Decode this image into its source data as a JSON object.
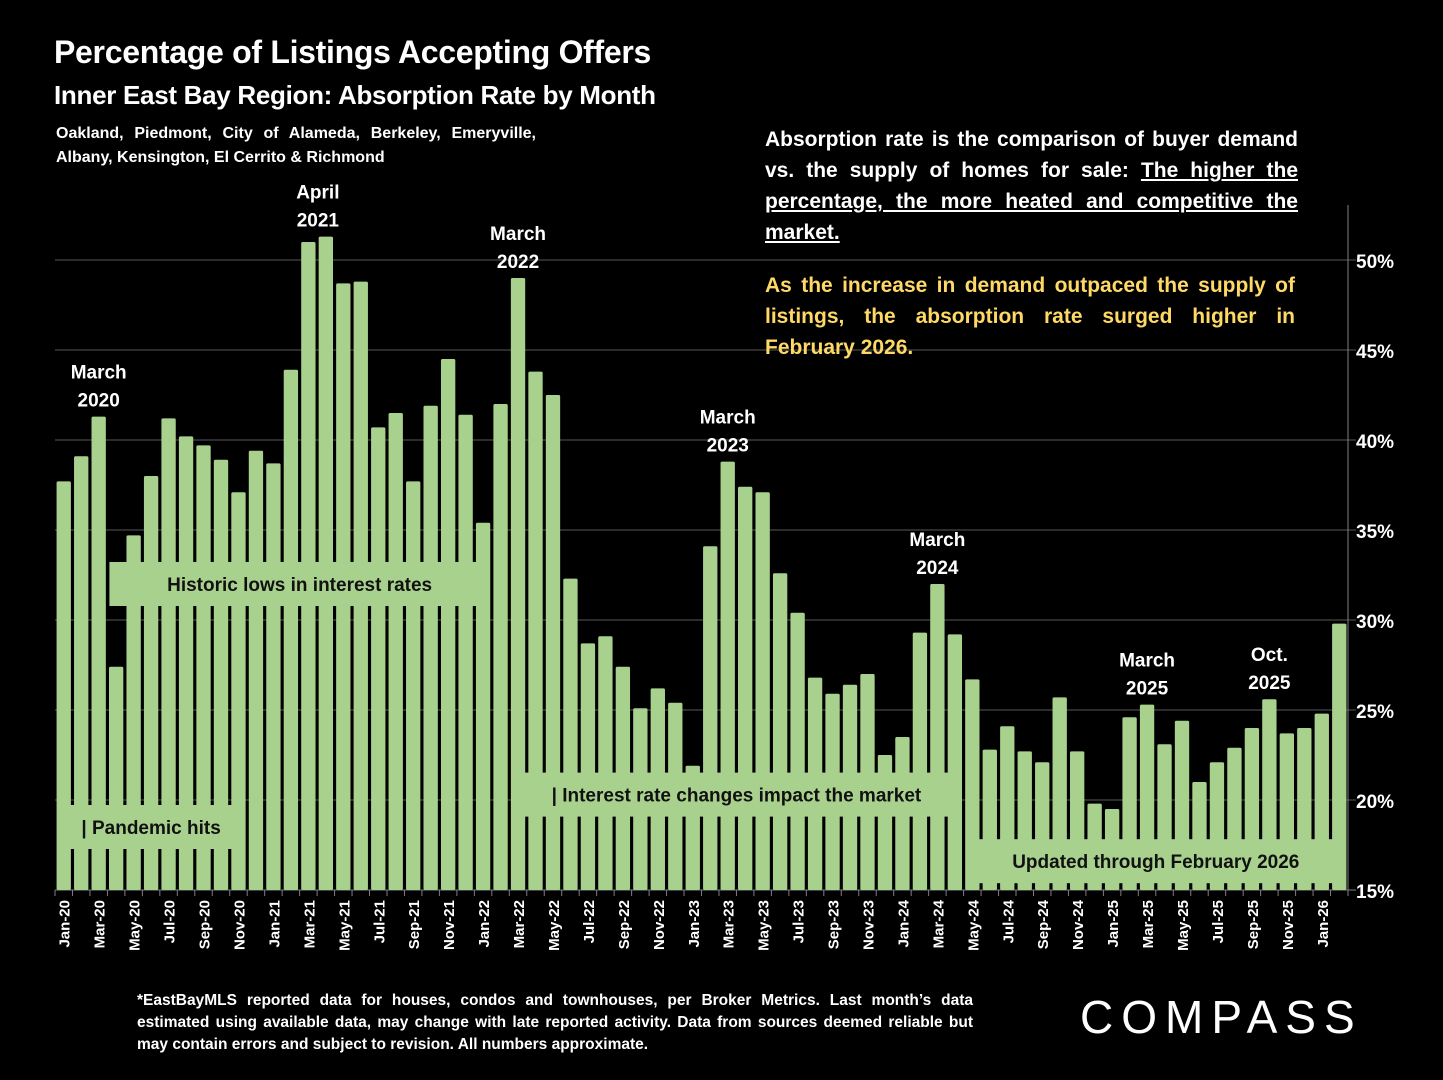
{
  "header": {
    "title": "Percentage of Listings Accepting Offers",
    "subtitle": "Inner East Bay Region:  Absorption Rate by Month",
    "regions": "Oakland, Piedmont, City of Alameda, Berkeley, Emeryville, Albany, Kensington, El Cerrito & Richmond"
  },
  "explanation": {
    "plain": "Absorption rate is the comparison of buyer demand vs. the supply of homes for sale: ",
    "underlined": "The higher the percentage, the more heated and competitive the market.",
    "highlight": "As the increase in demand outpaced the supply of listings, the absorption rate surged higher in February 2026."
  },
  "footnote": "*EastBayMLS reported data for houses, condos and townhouses, per Broker Metrics. Last month’s data estimated using available data, may change with late reported activity. Data from sources deemed reliable but may contain errors and subject to revision. All numbers approximate.",
  "logo": "COMPASS",
  "colors": {
    "bar": "#a9d18e",
    "highlight_text": "#ffd966",
    "grid": "#595959",
    "background": "#000000"
  },
  "chart_data": {
    "type": "bar",
    "title": "Percentage of Listings Accepting Offers",
    "xlabel": "",
    "ylabel": "",
    "ylim": [
      15,
      52
    ],
    "yticks": [
      15,
      20,
      25,
      30,
      35,
      40,
      45,
      50
    ],
    "ytick_format": "%",
    "y_axis_side": "right",
    "grid": true,
    "categories": [
      "Jan-20",
      "Feb-20",
      "Mar-20",
      "Apr-20",
      "May-20",
      "Jun-20",
      "Jul-20",
      "Aug-20",
      "Sep-20",
      "Oct-20",
      "Nov-20",
      "Dec-20",
      "Jan-21",
      "Feb-21",
      "Mar-21",
      "Apr-21",
      "May-21",
      "Jun-21",
      "Jul-21",
      "Aug-21",
      "Sep-21",
      "Oct-21",
      "Nov-21",
      "Dec-21",
      "Jan-22",
      "Feb-22",
      "Mar-22",
      "Apr-22",
      "May-22",
      "Jun-22",
      "Jul-22",
      "Aug-22",
      "Sep-22",
      "Oct-22",
      "Nov-22",
      "Dec-22",
      "Jan-23",
      "Feb-23",
      "Mar-23",
      "Apr-23",
      "May-23",
      "Jun-23",
      "Jul-23",
      "Aug-23",
      "Sep-23",
      "Oct-23",
      "Nov-23",
      "Dec-23",
      "Jan-24",
      "Feb-24",
      "Mar-24",
      "Apr-24",
      "May-24",
      "Jun-24",
      "Jul-24",
      "Aug-24",
      "Sep-24",
      "Oct-24",
      "Nov-24",
      "Dec-24",
      "Jan-25",
      "Feb-25",
      "Mar-25",
      "Apr-25",
      "May-25",
      "Jun-25",
      "Jul-25",
      "Aug-25",
      "Sep-25",
      "Oct-25",
      "Nov-25",
      "Dec-25",
      "Jan-26",
      "Feb-26"
    ],
    "shown_tick_labels": [
      "Jan-20",
      "Mar-20",
      "May-20",
      "Jul-20",
      "Sep-20",
      "Nov-20",
      "Jan-21",
      "Mar-21",
      "May-21",
      "Jul-21",
      "Sep-21",
      "Nov-21",
      "Jan-22",
      "Mar-22",
      "May-22",
      "Jul-22",
      "Sep-22",
      "Nov-22",
      "Jan-23",
      "Mar-23",
      "May-23",
      "Jul-23",
      "Sep-23",
      "Nov-23",
      "Jan-24",
      "Mar-24",
      "May-24",
      "Jul-24",
      "Sep-24",
      "Nov-24",
      "Jan-25",
      "Mar-25",
      "May-25",
      "Jul-25",
      "Sep-25",
      "Nov-25",
      "Jan-26"
    ],
    "values": [
      37.7,
      39.1,
      41.3,
      27.4,
      34.7,
      38.0,
      41.2,
      40.2,
      39.7,
      38.9,
      37.1,
      39.4,
      38.7,
      43.9,
      51.0,
      51.3,
      48.7,
      48.8,
      40.7,
      41.5,
      37.7,
      41.9,
      44.5,
      41.4,
      35.4,
      42.0,
      49.0,
      43.8,
      42.5,
      32.3,
      28.7,
      29.1,
      27.4,
      25.1,
      26.2,
      25.4,
      21.9,
      34.1,
      38.8,
      37.4,
      37.1,
      32.6,
      30.4,
      26.8,
      25.9,
      26.4,
      27.0,
      22.5,
      23.5,
      29.3,
      32.0,
      29.2,
      26.7,
      22.8,
      24.1,
      22.7,
      22.1,
      25.7,
      22.7,
      19.8,
      19.5,
      24.6,
      25.3,
      23.1,
      24.4,
      21.0,
      22.1,
      22.9,
      24.0,
      25.6,
      23.7,
      24.0,
      24.8,
      29.8
    ],
    "annotations": [
      {
        "label_line1": "March",
        "label_line2": "2020",
        "category": "Mar-20"
      },
      {
        "label_line1": "April",
        "label_line2": "2021",
        "category": "Apr-21"
      },
      {
        "label_line1": "March",
        "label_line2": "2022",
        "category": "Mar-22"
      },
      {
        "label_line1": "March",
        "label_line2": "2023",
        "category": "Mar-23"
      },
      {
        "label_line1": "March",
        "label_line2": "2024",
        "category": "Mar-24"
      },
      {
        "label_line1": "March",
        "label_line2": "2025",
        "category": "Mar-25"
      },
      {
        "label_line1": "Oct.",
        "label_line2": "2025",
        "category": "Oct-25"
      }
    ],
    "bands": [
      {
        "text": "| Pandemic hits",
        "from": "Jan-20",
        "to": "Nov-20",
        "level": 18.5
      },
      {
        "text": "Historic lows in interest rates",
        "from": "Apr-20",
        "to": "Jan-22",
        "level": 32.0
      },
      {
        "text": "| Interest rate changes impact the market",
        "from": "Mar-22",
        "to": "Apr-24",
        "level": 20.3
      },
      {
        "text": "Updated through February 2026",
        "from": "May-24",
        "to": "Feb-26",
        "level": 16.6
      }
    ]
  }
}
